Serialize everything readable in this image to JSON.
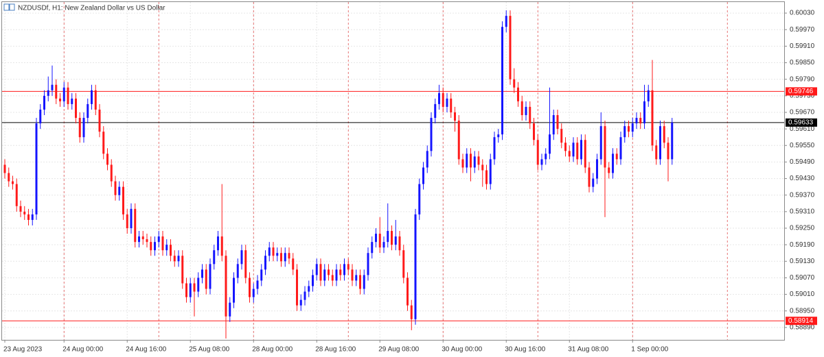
{
  "chart_data": {
    "type": "candlestick",
    "title": "NZDUSDf, H1:  New Zealand Dollar vs US Dollar",
    "up_color": "#1414ff",
    "down_color": "#ff1a1a",
    "grid": true,
    "ylim": [
      0.58845,
      0.6007
    ],
    "yticks": [
      {
        "value": 0.6003,
        "label": "0.60030"
      },
      {
        "value": 0.5997,
        "label": "0.59970"
      },
      {
        "value": 0.5991,
        "label": "0.59910"
      },
      {
        "value": 0.5985,
        "label": "0.59850"
      },
      {
        "value": 0.5979,
        "label": "0.59790"
      },
      {
        "value": 0.5973,
        "label": "0.59730"
      },
      {
        "value": 0.5967,
        "label": "0.59670"
      },
      {
        "value": 0.5961,
        "label": "0.59610"
      },
      {
        "value": 0.5955,
        "label": "0.59550"
      },
      {
        "value": 0.5949,
        "label": "0.59490"
      },
      {
        "value": 0.5943,
        "label": "0.59430"
      },
      {
        "value": 0.5937,
        "label": "0.59370"
      },
      {
        "value": 0.5931,
        "label": "0.59310"
      },
      {
        "value": 0.5925,
        "label": "0.59250"
      },
      {
        "value": 0.5919,
        "label": "0.59190"
      },
      {
        "value": 0.5913,
        "label": "0.59130"
      },
      {
        "value": 0.5907,
        "label": "0.59070"
      },
      {
        "value": 0.5901,
        "label": "0.59010"
      },
      {
        "value": 0.5895,
        "label": "0.58950"
      },
      {
        "value": 0.5889,
        "label": "0.58890"
      }
    ],
    "levels": [
      {
        "value": 0.59746,
        "label": "0.59746",
        "color": "#ff1a1a"
      },
      {
        "value": 0.59633,
        "label": "0.59633",
        "color": "#000000"
      },
      {
        "value": 0.58914,
        "label": "0.58914",
        "color": "#ff1a1a"
      }
    ],
    "categories": [
      "23 Aug 2023",
      null,
      null,
      null,
      null,
      null,
      null,
      null,
      null,
      null,
      null,
      null,
      null,
      null,
      null,
      "24 Aug 00:00",
      null,
      null,
      null,
      null,
      null,
      null,
      null,
      null,
      null,
      null,
      null,
      null,
      null,
      null,
      null,
      "24 Aug 16:00",
      null,
      null,
      null,
      null,
      null,
      null,
      null,
      null,
      null,
      null,
      null,
      null,
      null,
      null,
      null,
      "25 Aug 08:00",
      null,
      null,
      null,
      null,
      null,
      null,
      null,
      null,
      null,
      null,
      null,
      null,
      null,
      null,
      null,
      "28 Aug 00:00",
      null,
      null,
      null,
      null,
      null,
      null,
      null,
      null,
      null,
      null,
      null,
      null,
      null,
      null,
      null,
      "28 Aug 16:00",
      null,
      null,
      null,
      null,
      null,
      null,
      null,
      null,
      null,
      null,
      null,
      null,
      null,
      null,
      null,
      "29 Aug 08:00",
      null,
      null,
      null,
      null,
      null,
      null,
      null,
      null,
      null,
      null,
      null,
      null,
      null,
      null,
      null,
      "30 Aug 00:00",
      null,
      null,
      null,
      null,
      null,
      null,
      null,
      null,
      null,
      null,
      null,
      null,
      null,
      null,
      null,
      "30 Aug 16:00",
      null,
      null,
      null,
      null,
      null,
      null,
      null,
      null,
      null,
      null,
      null,
      null,
      null,
      null,
      null,
      "31 Aug 08:00",
      null,
      null,
      null,
      null,
      null,
      null,
      null,
      null,
      null,
      null,
      null,
      null,
      null,
      null,
      null,
      "1 Sep 00:00",
      null,
      null,
      null,
      null,
      null,
      null,
      null,
      null,
      null,
      null
    ],
    "values": [
      [
        0.5948,
        0.595,
        0.5943,
        0.5945
      ],
      [
        0.5945,
        0.5947,
        0.594,
        0.5942
      ],
      [
        0.5942,
        0.5944,
        0.5939,
        0.5941
      ],
      [
        0.5941,
        0.5943,
        0.5931,
        0.5933
      ],
      [
        0.5933,
        0.5935,
        0.5929,
        0.5931
      ],
      [
        0.5931,
        0.5933,
        0.5928,
        0.593
      ],
      [
        0.593,
        0.5932,
        0.5926,
        0.5928
      ],
      [
        0.5928,
        0.5932,
        0.5926,
        0.593
      ],
      [
        0.593,
        0.5965,
        0.5928,
        0.5963
      ],
      [
        0.5963,
        0.597,
        0.5961,
        0.5968
      ],
      [
        0.5968,
        0.5975,
        0.5966,
        0.5973
      ],
      [
        0.5973,
        0.598,
        0.5971,
        0.5975
      ],
      [
        0.5975,
        0.5984,
        0.5973,
        0.5977
      ],
      [
        0.5977,
        0.5979,
        0.597,
        0.5972
      ],
      [
        0.5972,
        0.5974,
        0.5969,
        0.5971
      ],
      [
        0.5971,
        0.5978,
        0.5969,
        0.5976
      ],
      [
        0.5976,
        0.5978,
        0.5968,
        0.597
      ],
      [
        0.597,
        0.5974,
        0.5968,
        0.5972
      ],
      [
        0.5972,
        0.5974,
        0.5963,
        0.5965
      ],
      [
        0.5965,
        0.5967,
        0.5956,
        0.5958
      ],
      [
        0.5958,
        0.5967,
        0.5956,
        0.5965
      ],
      [
        0.5965,
        0.5972,
        0.5963,
        0.597
      ],
      [
        0.597,
        0.5977,
        0.5968,
        0.5975
      ],
      [
        0.5975,
        0.5977,
        0.5966,
        0.5968
      ],
      [
        0.5968,
        0.597,
        0.5958,
        0.596
      ],
      [
        0.596,
        0.5962,
        0.595,
        0.5952
      ],
      [
        0.5952,
        0.5954,
        0.5946,
        0.5948
      ],
      [
        0.5948,
        0.595,
        0.594,
        0.5942
      ],
      [
        0.5942,
        0.5944,
        0.5935,
        0.5937
      ],
      [
        0.5937,
        0.5942,
        0.5935,
        0.594
      ],
      [
        0.594,
        0.5942,
        0.5928,
        0.593
      ],
      [
        0.593,
        0.5932,
        0.5923,
        0.5925
      ],
      [
        0.5925,
        0.5934,
        0.5923,
        0.5932
      ],
      [
        0.5932,
        0.5934,
        0.5918,
        0.592
      ],
      [
        0.592,
        0.5924,
        0.5918,
        0.5922
      ],
      [
        0.5922,
        0.5924,
        0.5919,
        0.5921
      ],
      [
        0.5921,
        0.5923,
        0.5918,
        0.592
      ],
      [
        0.592,
        0.5922,
        0.5915,
        0.5917
      ],
      [
        0.5917,
        0.5922,
        0.5915,
        0.592
      ],
      [
        0.592,
        0.5924,
        0.5918,
        0.5922
      ],
      [
        0.5922,
        0.5924,
        0.5915,
        0.5917
      ],
      [
        0.5917,
        0.5921,
        0.5915,
        0.5919
      ],
      [
        0.5919,
        0.5921,
        0.5913,
        0.5915
      ],
      [
        0.5915,
        0.5917,
        0.5911,
        0.5913
      ],
      [
        0.5913,
        0.5917,
        0.5911,
        0.5915
      ],
      [
        0.5915,
        0.5917,
        0.5903,
        0.5905
      ],
      [
        0.5905,
        0.5907,
        0.5898,
        0.59
      ],
      [
        0.59,
        0.5907,
        0.5898,
        0.5905
      ],
      [
        0.5905,
        0.5907,
        0.5893,
        0.5902
      ],
      [
        0.5902,
        0.5909,
        0.59,
        0.5907
      ],
      [
        0.5907,
        0.5912,
        0.5905,
        0.591
      ],
      [
        0.591,
        0.5912,
        0.5901,
        0.5903
      ],
      [
        0.5903,
        0.5914,
        0.5901,
        0.5912
      ],
      [
        0.5912,
        0.5919,
        0.591,
        0.5917
      ],
      [
        0.5917,
        0.5924,
        0.5915,
        0.5922
      ],
      [
        0.5922,
        0.5941,
        0.5913,
        0.5915
      ],
      [
        0.5915,
        0.5917,
        0.5885,
        0.5893
      ],
      [
        0.5893,
        0.59,
        0.5891,
        0.5898
      ],
      [
        0.5898,
        0.5909,
        0.5896,
        0.5907
      ],
      [
        0.5907,
        0.5914,
        0.5905,
        0.5912
      ],
      [
        0.5912,
        0.5919,
        0.591,
        0.5917
      ],
      [
        0.5917,
        0.5919,
        0.5905,
        0.5907
      ],
      [
        0.5907,
        0.5909,
        0.5898,
        0.59
      ],
      [
        0.59,
        0.5905,
        0.5898,
        0.5903
      ],
      [
        0.5903,
        0.5908,
        0.5901,
        0.5906
      ],
      [
        0.5906,
        0.5912,
        0.5904,
        0.591
      ],
      [
        0.591,
        0.5917,
        0.5908,
        0.5915
      ],
      [
        0.5915,
        0.592,
        0.5913,
        0.5918
      ],
      [
        0.5918,
        0.592,
        0.5913,
        0.5915
      ],
      [
        0.5915,
        0.5918,
        0.5913,
        0.5916
      ],
      [
        0.5916,
        0.5918,
        0.5911,
        0.5913
      ],
      [
        0.5913,
        0.5918,
        0.5911,
        0.5916
      ],
      [
        0.5916,
        0.5918,
        0.5912,
        0.5914
      ],
      [
        0.5914,
        0.5916,
        0.5908,
        0.591
      ],
      [
        0.591,
        0.5912,
        0.5895,
        0.5897
      ],
      [
        0.5897,
        0.5901,
        0.5895,
        0.5899
      ],
      [
        0.5899,
        0.5904,
        0.5897,
        0.5902
      ],
      [
        0.5902,
        0.5906,
        0.59,
        0.5904
      ],
      [
        0.5904,
        0.591,
        0.5902,
        0.5908
      ],
      [
        0.5908,
        0.5914,
        0.5906,
        0.5912
      ],
      [
        0.5912,
        0.5914,
        0.5904,
        0.5906
      ],
      [
        0.5906,
        0.5912,
        0.5904,
        0.591
      ],
      [
        0.591,
        0.5912,
        0.5906,
        0.5908
      ],
      [
        0.5908,
        0.591,
        0.5904,
        0.5906
      ],
      [
        0.5906,
        0.5912,
        0.5904,
        0.591
      ],
      [
        0.591,
        0.5912,
        0.5906,
        0.5908
      ],
      [
        0.5908,
        0.5914,
        0.5906,
        0.5912
      ],
      [
        0.5912,
        0.5914,
        0.5908,
        0.591
      ],
      [
        0.591,
        0.5912,
        0.5904,
        0.5906
      ],
      [
        0.5906,
        0.591,
        0.5904,
        0.5908
      ],
      [
        0.5908,
        0.591,
        0.5901,
        0.5903
      ],
      [
        0.5903,
        0.591,
        0.5901,
        0.5908
      ],
      [
        0.5908,
        0.5918,
        0.5906,
        0.5916
      ],
      [
        0.5916,
        0.5922,
        0.5914,
        0.592
      ],
      [
        0.592,
        0.5925,
        0.5918,
        0.5923
      ],
      [
        0.5923,
        0.5929,
        0.5916,
        0.5918
      ],
      [
        0.5918,
        0.5922,
        0.5916,
        0.592
      ],
      [
        0.592,
        0.5934,
        0.5918,
        0.5924
      ],
      [
        0.5924,
        0.5926,
        0.5917,
        0.5919
      ],
      [
        0.5919,
        0.5928,
        0.5917,
        0.5922
      ],
      [
        0.5922,
        0.5924,
        0.5915,
        0.5917
      ],
      [
        0.5917,
        0.5919,
        0.5905,
        0.5907
      ],
      [
        0.5907,
        0.5909,
        0.5895,
        0.5897
      ],
      [
        0.5897,
        0.5899,
        0.5888,
        0.5892
      ],
      [
        0.5892,
        0.5932,
        0.589,
        0.593
      ],
      [
        0.593,
        0.5943,
        0.5928,
        0.5941
      ],
      [
        0.5941,
        0.5949,
        0.5939,
        0.5947
      ],
      [
        0.5947,
        0.5955,
        0.5945,
        0.5953
      ],
      [
        0.5953,
        0.5967,
        0.5951,
        0.5965
      ],
      [
        0.5965,
        0.5972,
        0.5963,
        0.597
      ],
      [
        0.597,
        0.5977,
        0.5968,
        0.5974
      ],
      [
        0.5974,
        0.5976,
        0.5967,
        0.5969
      ],
      [
        0.5969,
        0.5974,
        0.5967,
        0.5972
      ],
      [
        0.5972,
        0.5974,
        0.5965,
        0.5967
      ],
      [
        0.5967,
        0.5969,
        0.596,
        0.5964
      ],
      [
        0.5964,
        0.5966,
        0.5948,
        0.595
      ],
      [
        0.595,
        0.5952,
        0.5945,
        0.5947
      ],
      [
        0.5947,
        0.5954,
        0.5945,
        0.5952
      ],
      [
        0.5952,
        0.5954,
        0.5942,
        0.5947
      ],
      [
        0.5947,
        0.5953,
        0.5945,
        0.5951
      ],
      [
        0.5951,
        0.5953,
        0.5946,
        0.5948
      ],
      [
        0.5948,
        0.595,
        0.594,
        0.5946
      ],
      [
        0.5946,
        0.5948,
        0.5939,
        0.5941
      ],
      [
        0.5941,
        0.5952,
        0.5939,
        0.595
      ],
      [
        0.595,
        0.596,
        0.5948,
        0.5958
      ],
      [
        0.5958,
        0.5961,
        0.5956,
        0.5959
      ],
      [
        0.5959,
        0.6,
        0.5957,
        0.5998
      ],
      [
        0.5998,
        0.6004,
        0.5996,
        0.6002
      ],
      [
        0.6002,
        0.6004,
        0.5977,
        0.5979
      ],
      [
        0.5979,
        0.5983,
        0.5974,
        0.5976
      ],
      [
        0.5976,
        0.5978,
        0.5969,
        0.5971
      ],
      [
        0.5971,
        0.5973,
        0.5964,
        0.5966
      ],
      [
        0.5966,
        0.5971,
        0.5964,
        0.5969
      ],
      [
        0.5969,
        0.5971,
        0.5961,
        0.5963
      ],
      [
        0.5963,
        0.5965,
        0.5955,
        0.5957
      ],
      [
        0.5957,
        0.5959,
        0.5946,
        0.5948
      ],
      [
        0.5948,
        0.5952,
        0.5946,
        0.595
      ],
      [
        0.595,
        0.5954,
        0.5948,
        0.5952
      ],
      [
        0.5952,
        0.5976,
        0.595,
        0.5959
      ],
      [
        0.5959,
        0.5968,
        0.5957,
        0.5966
      ],
      [
        0.5966,
        0.5968,
        0.5959,
        0.5961
      ],
      [
        0.5961,
        0.5963,
        0.5954,
        0.5956
      ],
      [
        0.5956,
        0.5958,
        0.5951,
        0.5953
      ],
      [
        0.5953,
        0.5955,
        0.5949,
        0.5951
      ],
      [
        0.5951,
        0.5958,
        0.5949,
        0.5956
      ],
      [
        0.5956,
        0.5958,
        0.5948,
        0.595
      ],
      [
        0.595,
        0.5959,
        0.5948,
        0.5957
      ],
      [
        0.5957,
        0.5959,
        0.5945,
        0.5947
      ],
      [
        0.5947,
        0.5949,
        0.5938,
        0.594
      ],
      [
        0.594,
        0.5945,
        0.5938,
        0.5943
      ],
      [
        0.5943,
        0.5952,
        0.5941,
        0.595
      ],
      [
        0.595,
        0.5967,
        0.5948,
        0.5962
      ],
      [
        0.5962,
        0.5964,
        0.5929,
        0.5947
      ],
      [
        0.5947,
        0.5949,
        0.5943,
        0.5945
      ],
      [
        0.5945,
        0.5954,
        0.5943,
        0.5952
      ],
      [
        0.5952,
        0.5954,
        0.5948,
        0.595
      ],
      [
        0.595,
        0.596,
        0.5948,
        0.5958
      ],
      [
        0.5958,
        0.5964,
        0.5956,
        0.5962
      ],
      [
        0.5962,
        0.5964,
        0.5958,
        0.596
      ],
      [
        0.596,
        0.5965,
        0.5958,
        0.5963
      ],
      [
        0.5963,
        0.5967,
        0.5961,
        0.5965
      ],
      [
        0.5965,
        0.5967,
        0.5961,
        0.5963
      ],
      [
        0.5963,
        0.5977,
        0.5961,
        0.5971
      ],
      [
        0.5971,
        0.5977,
        0.5969,
        0.5975
      ],
      [
        0.5975,
        0.5986,
        0.5953,
        0.5955
      ],
      [
        0.5955,
        0.5957,
        0.5948,
        0.595
      ],
      [
        0.595,
        0.5964,
        0.5948,
        0.5962
      ],
      [
        0.5962,
        0.5964,
        0.5954,
        0.5956
      ],
      [
        0.5956,
        0.5958,
        0.5942,
        0.595
      ],
      [
        0.595,
        0.5965,
        0.5948,
        0.59633
      ]
    ]
  }
}
